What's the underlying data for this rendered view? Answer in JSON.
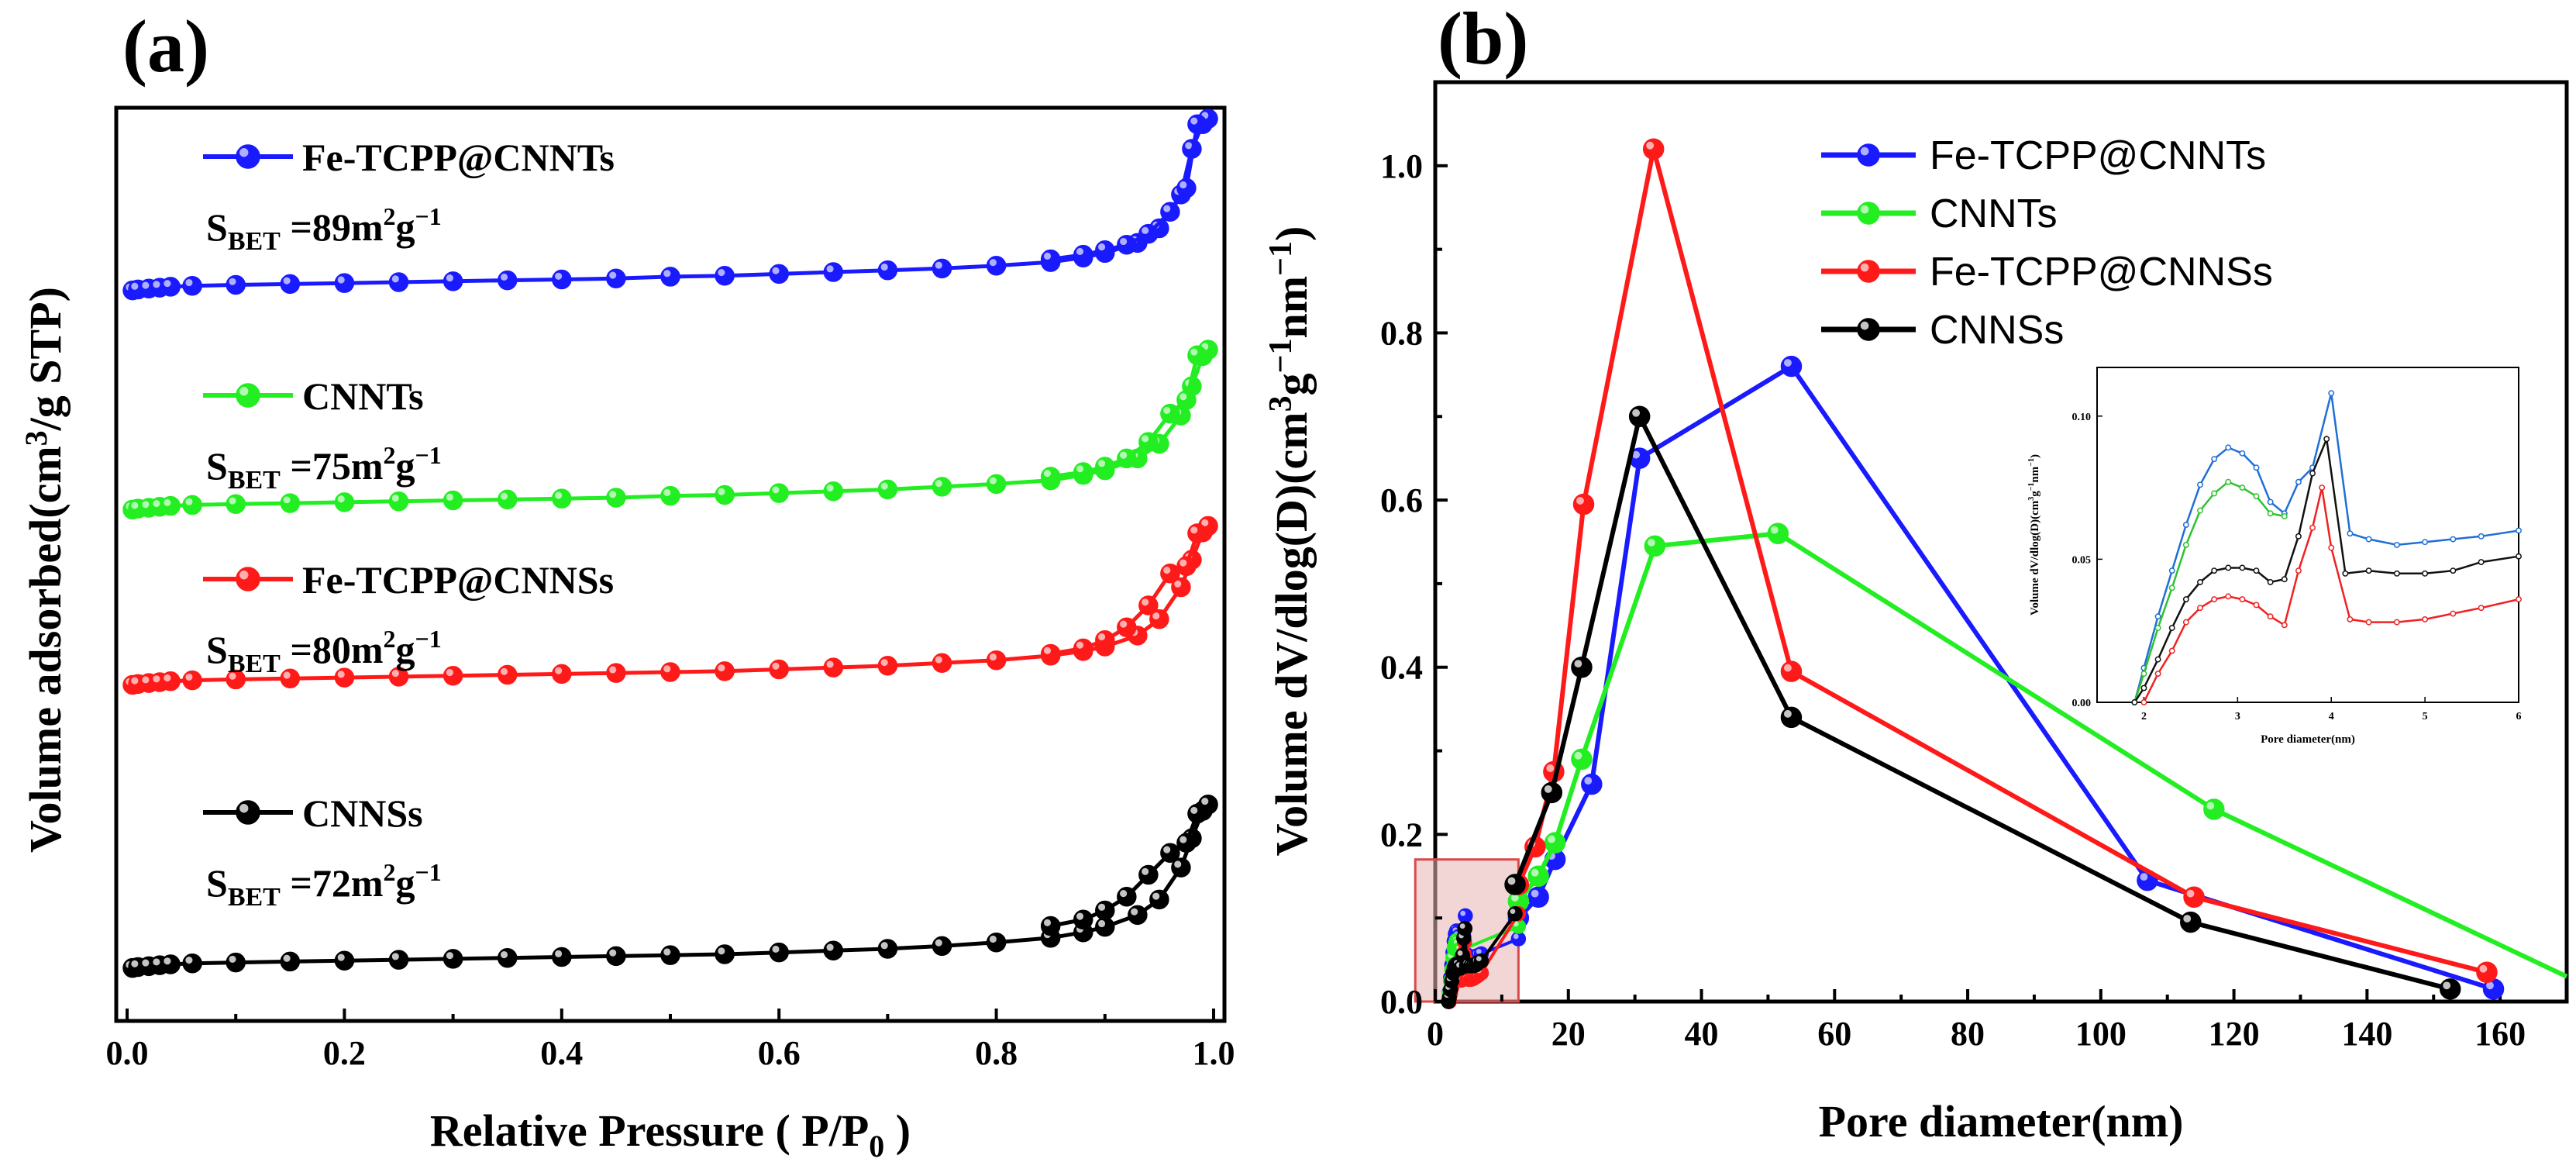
{
  "colors": {
    "Fe-TCPP@CNNTs": "#1a1aff",
    "CNNTs": "#22ee22",
    "Fe-TCPP@CNNSs": "#ff1a1a",
    "CNNSs": "#000000",
    "highlight_fill": "#e8b4b4",
    "highlight_stroke": "#d94a4a"
  },
  "chart_data": [
    {
      "id": "a",
      "type": "scatter",
      "panel_label": "(a)",
      "title": "",
      "xlabel_main": "Relative Pressure ( P/P",
      "xlabel_sub": "0",
      "xlabel_end": " )",
      "ylabel_main": "Volume adsorbed(cm",
      "ylabel_sup": "3",
      "ylabel_end": "/g STP)",
      "xlim": [
        -0.01,
        1.01
      ],
      "ylim": [
        0,
        100
      ],
      "x_ticks": [
        0.0,
        0.2,
        0.4,
        0.6,
        0.8,
        1.0
      ],
      "x_tick_labels": [
        "0.0",
        "0.2",
        "0.4",
        "0.6",
        "0.8",
        "1.0"
      ],
      "y_ticks_shown": false,
      "series": [
        {
          "name": "Fe-TCPP@CNNTs",
          "sbet": {
            "pre": "S",
            "sub": "BET",
            "mid": " =89m",
            "sup1": "2",
            "g": "g",
            "sup2": "−1"
          },
          "adsorption": {
            "x": [
              0.005,
              0.01,
              0.02,
              0.03,
              0.04,
              0.06,
              0.1,
              0.15,
              0.2,
              0.25,
              0.3,
              0.35,
              0.4,
              0.45,
              0.5,
              0.55,
              0.6,
              0.65,
              0.7,
              0.75,
              0.8,
              0.85,
              0.88,
              0.9,
              0.93,
              0.95,
              0.97,
              0.98,
              0.99,
              0.995
            ],
            "y": [
              80.0,
              80.1,
              80.2,
              80.3,
              80.4,
              80.5,
              80.6,
              80.7,
              80.8,
              80.9,
              81.0,
              81.1,
              81.2,
              81.3,
              81.5,
              81.6,
              81.8,
              82.0,
              82.2,
              82.4,
              82.7,
              83.1,
              83.6,
              84.1,
              85.2,
              86.8,
              90.5,
              95.5,
              98.2,
              98.8
            ]
          },
          "desorption": {
            "x": [
              0.995,
              0.985,
              0.975,
              0.96,
              0.94,
              0.92,
              0.9,
              0.88,
              0.85
            ],
            "y": [
              98.8,
              98.2,
              91.2,
              88.6,
              86.2,
              85.0,
              84.4,
              83.9,
              83.4
            ]
          }
        },
        {
          "name": "CNNTs",
          "sbet": {
            "pre": "S",
            "sub": "BET",
            "mid": " =75m",
            "sup1": "2",
            "g": "g",
            "sup2": "−1"
          },
          "adsorption": {
            "x": [
              0.005,
              0.01,
              0.02,
              0.03,
              0.04,
              0.06,
              0.1,
              0.15,
              0.2,
              0.25,
              0.3,
              0.35,
              0.4,
              0.45,
              0.5,
              0.55,
              0.6,
              0.65,
              0.7,
              0.75,
              0.8,
              0.85,
              0.88,
              0.9,
              0.93,
              0.95,
              0.97,
              0.98,
              0.99,
              0.995
            ],
            "y": [
              56.0,
              56.1,
              56.2,
              56.3,
              56.4,
              56.5,
              56.6,
              56.7,
              56.8,
              56.9,
              57.0,
              57.1,
              57.2,
              57.3,
              57.5,
              57.6,
              57.8,
              58.0,
              58.2,
              58.5,
              58.8,
              59.2,
              59.8,
              60.3,
              61.6,
              63.2,
              66.3,
              69.5,
              72.8,
              73.5
            ]
          },
          "desorption": {
            "x": [
              0.995,
              0.985,
              0.975,
              0.96,
              0.94,
              0.92,
              0.9,
              0.88,
              0.85
            ],
            "y": [
              73.5,
              72.9,
              68.0,
              66.5,
              63.4,
              61.6,
              60.7,
              60.1,
              59.6
            ]
          }
        },
        {
          "name": "Fe-TCPP@CNNSs",
          "sbet": {
            "pre": "S",
            "sub": "BET",
            "mid": " =80m",
            "sup1": "2",
            "g": "g",
            "sup2": "−1"
          },
          "adsorption": {
            "x": [
              0.005,
              0.01,
              0.02,
              0.03,
              0.04,
              0.06,
              0.1,
              0.15,
              0.2,
              0.25,
              0.3,
              0.35,
              0.4,
              0.45,
              0.5,
              0.55,
              0.6,
              0.65,
              0.7,
              0.75,
              0.8,
              0.85,
              0.88,
              0.9,
              0.93,
              0.95,
              0.97,
              0.98,
              0.99,
              0.995
            ],
            "y": [
              36.8,
              36.9,
              37.0,
              37.1,
              37.2,
              37.3,
              37.4,
              37.5,
              37.6,
              37.7,
              37.8,
              37.9,
              38.0,
              38.1,
              38.2,
              38.3,
              38.5,
              38.7,
              38.9,
              39.2,
              39.5,
              40.0,
              40.5,
              41.0,
              42.2,
              44.0,
              47.5,
              50.5,
              53.5,
              54.2
            ]
          },
          "desorption": {
            "x": [
              0.995,
              0.985,
              0.975,
              0.96,
              0.94,
              0.92,
              0.9,
              0.88,
              0.85
            ],
            "y": [
              54.2,
              53.4,
              49.8,
              49.0,
              45.5,
              43.1,
              41.7,
              40.8,
              40.2
            ]
          }
        },
        {
          "name": "CNNSs",
          "sbet": {
            "pre": "S",
            "sub": "BET",
            "mid": " =72m",
            "sup1": "2",
            "g": "g",
            "sup2": "−1"
          },
          "adsorption": {
            "x": [
              0.005,
              0.01,
              0.02,
              0.03,
              0.04,
              0.06,
              0.1,
              0.15,
              0.2,
              0.25,
              0.3,
              0.35,
              0.4,
              0.45,
              0.5,
              0.55,
              0.6,
              0.65,
              0.7,
              0.75,
              0.8,
              0.85,
              0.88,
              0.9,
              0.93,
              0.95,
              0.97,
              0.98,
              0.99,
              0.995
            ],
            "y": [
              5.8,
              5.9,
              6.0,
              6.1,
              6.2,
              6.3,
              6.4,
              6.5,
              6.6,
              6.7,
              6.8,
              6.9,
              7.0,
              7.1,
              7.2,
              7.3,
              7.5,
              7.7,
              7.9,
              8.2,
              8.6,
              9.1,
              9.7,
              10.3,
              11.6,
              13.3,
              16.8,
              20.0,
              23.0,
              23.7
            ]
          },
          "desorption": {
            "x": [
              0.995,
              0.985,
              0.975,
              0.96,
              0.94,
              0.92,
              0.9,
              0.88,
              0.85
            ],
            "y": [
              23.7,
              22.7,
              19.5,
              18.4,
              16.0,
              13.6,
              12.1,
              11.1,
              10.4
            ]
          }
        }
      ]
    },
    {
      "id": "b",
      "type": "line",
      "panel_label": "(b)",
      "title": "",
      "xlabel": "Pore diameter(nm)",
      "ylabel_main": "Volume dV/dlog(D)(cm",
      "ylabel_sup1": "3",
      "ylabel_mid": "g",
      "ylabel_sup2": "−1",
      "ylabel_mid2": "nm",
      "ylabel_sup3": "−1",
      "ylabel_end": ")",
      "xlim": [
        0,
        170
      ],
      "ylim": [
        0,
        1.1
      ],
      "x_ticks": [
        0,
        20,
        40,
        60,
        80,
        100,
        120,
        140,
        160
      ],
      "x_tick_labels": [
        "0",
        "20",
        "40",
        "60",
        "80",
        "100",
        "120",
        "140",
        "160"
      ],
      "y_ticks": [
        0.0,
        0.2,
        0.4,
        0.6,
        0.8,
        1.0
      ],
      "y_tick_labels": [
        "0.0",
        "0.2",
        "0.4",
        "0.6",
        "0.8",
        "1.0"
      ],
      "highlight_region": {
        "x": [
          -3,
          12.5
        ],
        "y": [
          0,
          0.17
        ]
      },
      "series": [
        {
          "name": "Fe-TCPP@CNNTs",
          "x": [
            12.5,
            15.5,
            18.0,
            23.5,
            30.7,
            53.5,
            107.0,
            159.0
          ],
          "y": [
            0.1,
            0.125,
            0.17,
            0.26,
            0.65,
            0.76,
            0.145,
            0.015
          ]
        },
        {
          "name": "CNNTs",
          "x": [
            12.5,
            15.5,
            18.0,
            22.0,
            33.0,
            51.5,
            117.0,
            170.0
          ],
          "y": [
            0.12,
            0.15,
            0.19,
            0.29,
            0.545,
            0.56,
            0.23,
            0.03
          ]
        },
        {
          "name": "Fe-TCPP@CNNSs",
          "x": [
            12.5,
            15.0,
            17.8,
            22.3,
            32.8,
            53.5,
            114.0,
            158.0
          ],
          "y": [
            0.14,
            0.185,
            0.275,
            0.595,
            1.02,
            0.395,
            0.125,
            0.035
          ]
        },
        {
          "name": "CNNSs",
          "x": [
            12.0,
            17.5,
            22.0,
            30.7,
            53.5,
            113.5,
            152.5
          ],
          "y": [
            0.14,
            0.25,
            0.4,
            0.7,
            0.34,
            0.095,
            0.015
          ]
        }
      ],
      "inset": {
        "type": "line",
        "xlabel": "Pore diameter(nm)",
        "ylabel_main": "Volume dV/dlog(D)(cm",
        "ylabel_sup1": "3",
        "ylabel_mid": "g",
        "ylabel_sup2": "−1",
        "ylabel_mid2": "nm",
        "ylabel_sup3": "−1",
        "ylabel_end": ")",
        "xlim": [
          1.5,
          6
        ],
        "ylim": [
          0,
          0.117
        ],
        "x_ticks": [
          2,
          3,
          4,
          5,
          6
        ],
        "x_tick_labels": [
          "2",
          "3",
          "4",
          "5",
          "6"
        ],
        "y_ticks": [
          0.0,
          0.05,
          0.1
        ],
        "y_tick_labels": [
          "0.00",
          "0.05",
          "0.10"
        ],
        "series": [
          {
            "name": "Fe-TCPP@CNNTs",
            "x": [
              1.9,
              2.0,
              2.15,
              2.3,
              2.45,
              2.6,
              2.75,
              2.9,
              3.05,
              3.2,
              3.35,
              3.5,
              3.65,
              3.8,
              4.0,
              4.2,
              4.4,
              4.7,
              5.0,
              5.3,
              5.6,
              6.0
            ],
            "y": [
              0.0,
              0.012,
              0.03,
              0.046,
              0.062,
              0.076,
              0.085,
              0.089,
              0.087,
              0.082,
              0.07,
              0.066,
              0.077,
              0.082,
              0.108,
              0.059,
              0.057,
              0.055,
              0.056,
              0.057,
              0.058,
              0.06
            ]
          },
          {
            "name": "CNNTs",
            "x": [
              1.9,
              2.0,
              2.15,
              2.3,
              2.45,
              2.6,
              2.75,
              2.9,
              3.05,
              3.2,
              3.35,
              3.5
            ],
            "y": [
              0.0,
              0.01,
              0.026,
              0.04,
              0.055,
              0.067,
              0.073,
              0.077,
              0.075,
              0.072,
              0.066,
              0.065
            ]
          },
          {
            "name": "Fe-TCPP@CNNSs",
            "x": [
              2.0,
              2.15,
              2.3,
              2.45,
              2.6,
              2.75,
              2.9,
              3.05,
              3.2,
              3.35,
              3.5,
              3.65,
              3.8,
              3.9,
              4.0,
              4.2,
              4.4,
              4.7,
              5.0,
              5.3,
              5.6,
              6.0
            ],
            "y": [
              0.0,
              0.01,
              0.018,
              0.028,
              0.033,
              0.036,
              0.037,
              0.036,
              0.034,
              0.03,
              0.027,
              0.046,
              0.061,
              0.075,
              0.054,
              0.029,
              0.028,
              0.028,
              0.029,
              0.031,
              0.033,
              0.036
            ]
          },
          {
            "name": "CNNSs",
            "x": [
              1.9,
              2.0,
              2.15,
              2.3,
              2.45,
              2.6,
              2.75,
              2.9,
              3.05,
              3.2,
              3.35,
              3.5,
              3.65,
              3.8,
              3.95,
              4.15,
              4.4,
              4.7,
              5.0,
              5.3,
              5.6,
              6.0
            ],
            "y": [
              0.0,
              0.005,
              0.015,
              0.026,
              0.036,
              0.042,
              0.046,
              0.047,
              0.047,
              0.046,
              0.042,
              0.043,
              0.058,
              0.08,
              0.092,
              0.045,
              0.046,
              0.045,
              0.045,
              0.046,
              0.049,
              0.051
            ]
          }
        ]
      }
    }
  ]
}
